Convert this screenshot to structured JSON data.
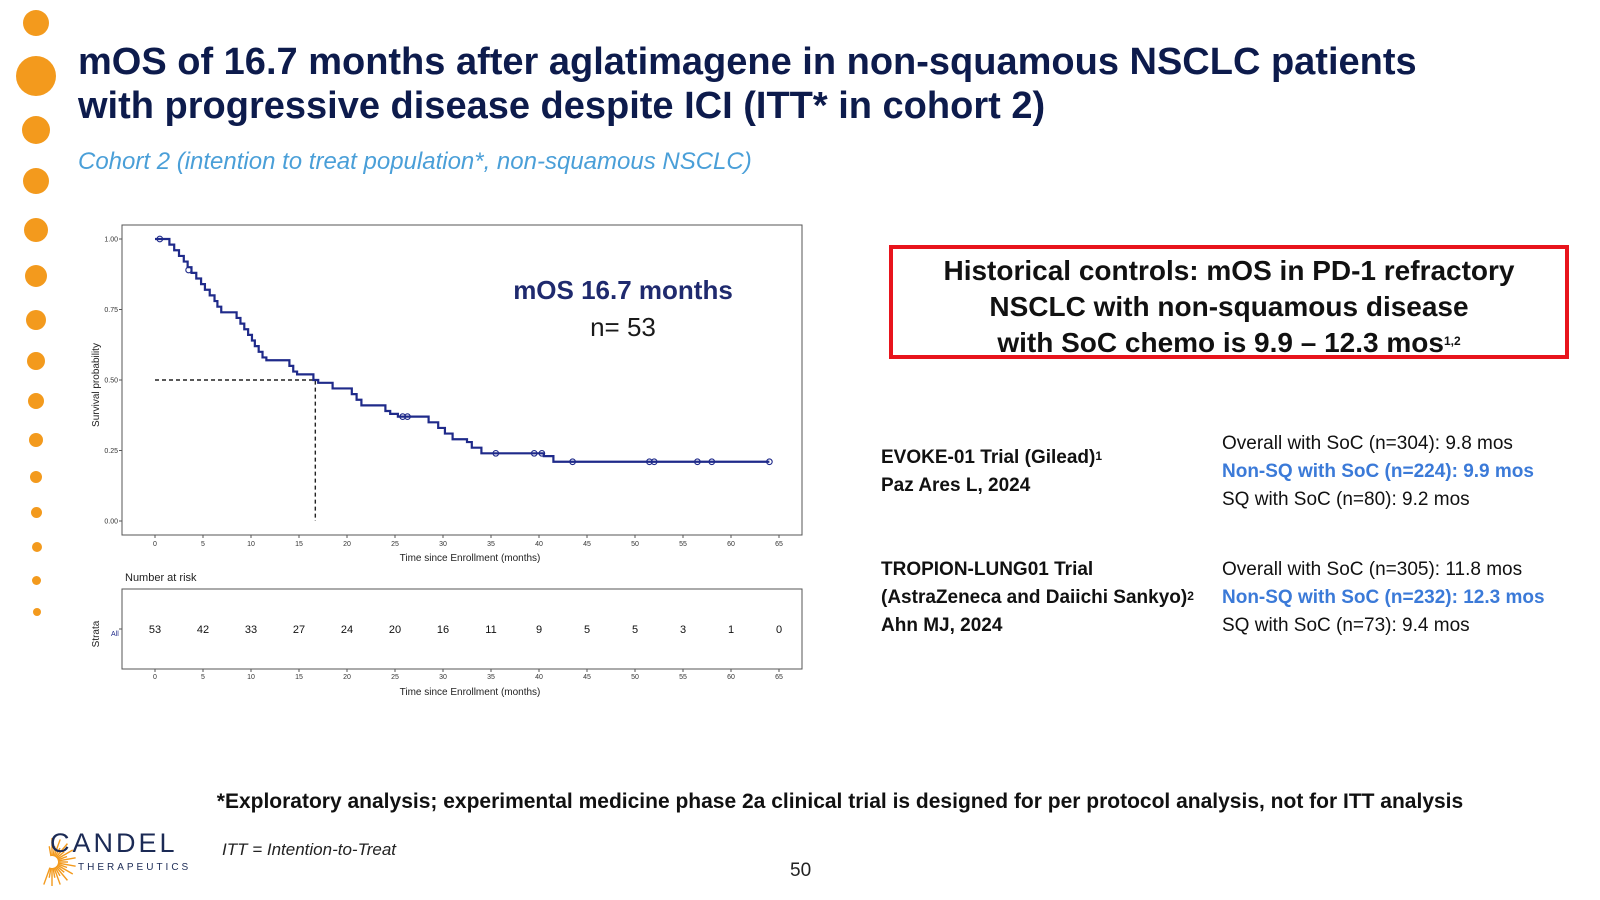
{
  "colors": {
    "title": "#0d1b4c",
    "subtitle": "#4a9fd8",
    "accent_orange": "#f39a1d",
    "box_red": "#e8141c",
    "highlight_blue": "#3b7ad8",
    "km_line": "#1f2a8a"
  },
  "title": {
    "line1": "mOS of 16.7 months after aglatimagene in non-squamous NSCLC patients",
    "line2": "with progressive disease despite ICI (ITT* in cohort 2)"
  },
  "subtitle": "Cohort 2 (intention to treat population*, non-squamous NSCLC)",
  "chart_data": {
    "type": "line",
    "title": "",
    "ylabel": "Survival probability",
    "xlabel": "Time since Enrollment (months)",
    "xlim": [
      0,
      65
    ],
    "ylim": [
      0,
      1
    ],
    "xticks": [
      "0",
      "5",
      "10",
      "15",
      "20",
      "25",
      "30",
      "35",
      "40",
      "45",
      "50",
      "55",
      "60",
      "65"
    ],
    "yticks": [
      "0.00",
      "0.25",
      "0.50",
      "0.75",
      "1.00"
    ],
    "annotation": {
      "line1": "mOS 16.7 months",
      "line2": "n= 53"
    },
    "median": {
      "x": 16.7,
      "y": 0.5
    },
    "series": [
      {
        "x": [
          0,
          1.5,
          2.0,
          2.5,
          3.0,
          3.4,
          3.8,
          4.3,
          4.8,
          5.2,
          5.7,
          6.2,
          6.5,
          6.9,
          8.5,
          8.9,
          9.3,
          9.7,
          10.1,
          10.4,
          10.8,
          11.2,
          11.6,
          14.0,
          14.4,
          14.8,
          16.5,
          17.0,
          18.5,
          20.5,
          21.0,
          21.5,
          24.0,
          24.5,
          25.3,
          28.5,
          29.5,
          30.2,
          31.0,
          32.5,
          33.0,
          34.0,
          36.0,
          40.5,
          41.5,
          64.0
        ],
        "y": [
          1.0,
          0.98,
          0.96,
          0.94,
          0.92,
          0.9,
          0.88,
          0.86,
          0.84,
          0.82,
          0.8,
          0.78,
          0.76,
          0.74,
          0.72,
          0.7,
          0.68,
          0.66,
          0.64,
          0.62,
          0.6,
          0.58,
          0.57,
          0.55,
          0.53,
          0.52,
          0.5,
          0.49,
          0.47,
          0.45,
          0.43,
          0.41,
          0.39,
          0.38,
          0.37,
          0.35,
          0.33,
          0.31,
          0.29,
          0.28,
          0.26,
          0.24,
          0.24,
          0.23,
          0.21,
          0.21
        ],
        "censored": [
          {
            "x": 0.5,
            "y": 1.0
          },
          {
            "x": 3.5,
            "y": 0.89
          },
          {
            "x": 25.8,
            "y": 0.37
          },
          {
            "x": 26.3,
            "y": 0.37
          },
          {
            "x": 35.5,
            "y": 0.24
          },
          {
            "x": 39.5,
            "y": 0.24
          },
          {
            "x": 40.3,
            "y": 0.24
          },
          {
            "x": 43.5,
            "y": 0.21
          },
          {
            "x": 51.5,
            "y": 0.21
          },
          {
            "x": 52.0,
            "y": 0.21
          },
          {
            "x": 56.5,
            "y": 0.21
          },
          {
            "x": 58.0,
            "y": 0.21
          },
          {
            "x": 64.0,
            "y": 0.21
          }
        ]
      }
    ],
    "risk_table": {
      "title": "Number at risk",
      "ylabel": "Strata",
      "stratum": "All",
      "counts": [
        "53",
        "42",
        "33",
        "27",
        "24",
        "20",
        "16",
        "11",
        "9",
        "5",
        "5",
        "3",
        "1",
        "0"
      ],
      "xlabel": "Time since Enrollment (months)"
    }
  },
  "historical_box": {
    "line1": "Historical controls: mOS in PD-1 refractory",
    "line2": "NSCLC with non-squamous disease",
    "line3": "with SoC chemo is 9.9 – 12.3 mos",
    "sup": "1,2"
  },
  "trials": [
    {
      "name_lines": [
        "EVOKE-01 Trial (Gilead)",
        "Paz Ares L, 2024"
      ],
      "sup": "1",
      "results": [
        "Overall with SoC (n=304): 9.8 mos",
        "Non-SQ with SoC (n=224): 9.9 mos",
        "SQ with SoC (n=80): 9.2 mos"
      ]
    },
    {
      "name_lines": [
        "TROPION-LUNG01 Trial",
        "(AstraZeneca and Daiichi Sankyo)",
        "Ahn MJ, 2024"
      ],
      "sup": "2",
      "results": [
        "Overall with SoC (n=305): 11.8 mos",
        "Non-SQ with SoC (n=232): 12.3 mos",
        "SQ with SoC (n=73): 9.4 mos"
      ]
    }
  ],
  "footnote": "*Exploratory analysis; experimental medicine phase 2a clinical trial is designed for per protocol analysis, not for ITT analysis",
  "logo": {
    "word": "CANDEL",
    "sub": "THERAPEUTICS"
  },
  "itt_note": "ITT = Intention-to-Treat",
  "page_number": "50"
}
